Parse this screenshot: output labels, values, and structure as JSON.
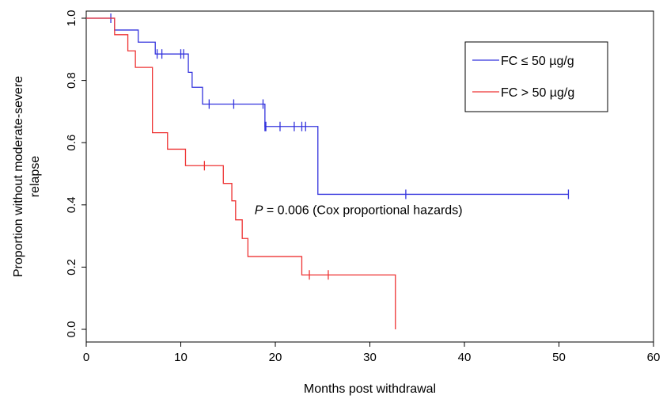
{
  "chart_data": {
    "type": "line",
    "subtype": "kaplan-meier",
    "xlabel": "Months post withdrawal",
    "ylabel_lines": [
      "Proportion without moderate-severe",
      "relapse"
    ],
    "xlim": [
      0,
      60
    ],
    "ylim": [
      0.0,
      1.0
    ],
    "xticks": [
      0,
      10,
      20,
      30,
      40,
      50,
      60
    ],
    "yticks": [
      "0.0",
      "0.2",
      "0.4",
      "0.6",
      "0.8",
      "1.0"
    ],
    "grid": false,
    "legend_position": "top-right",
    "annotation": {
      "italic_part": "P",
      "rest": " = 0.006 (Cox proportional hazards)",
      "x": 17.8,
      "y": 0.37
    },
    "series": [
      {
        "name": "FC ≤ 50 µg/g",
        "color": "#3333dd",
        "steps": [
          [
            0,
            1.0
          ],
          [
            3.0,
            0.962
          ],
          [
            5.5,
            0.923
          ],
          [
            7.3,
            0.885
          ],
          [
            10.8,
            0.826
          ],
          [
            11.2,
            0.778
          ],
          [
            12.3,
            0.724
          ],
          [
            18.9,
            0.652
          ],
          [
            24.5,
            0.434
          ],
          [
            51.0,
            0.434
          ]
        ],
        "censor_x": [
          2.6,
          7.5,
          8.0,
          10.0,
          10.3,
          13.0,
          15.6,
          18.7,
          19.0,
          18.9,
          20.5,
          22.0,
          22.8,
          23.2,
          33.8,
          51.0
        ]
      },
      {
        "name": "FC > 50 µg/g",
        "color": "#ee3333",
        "steps": [
          [
            0,
            1.0
          ],
          [
            3.0,
            0.947
          ],
          [
            4.4,
            0.895
          ],
          [
            5.2,
            0.842
          ],
          [
            7.0,
            0.632
          ],
          [
            8.6,
            0.579
          ],
          [
            10.5,
            0.526
          ],
          [
            14.5,
            0.469
          ],
          [
            15.4,
            0.413
          ],
          [
            15.8,
            0.352
          ],
          [
            16.5,
            0.292
          ],
          [
            17.1,
            0.234
          ],
          [
            22.8,
            0.175
          ],
          [
            32.7,
            0.0
          ]
        ],
        "censor_x": [
          12.5,
          23.6,
          25.6
        ]
      }
    ]
  }
}
